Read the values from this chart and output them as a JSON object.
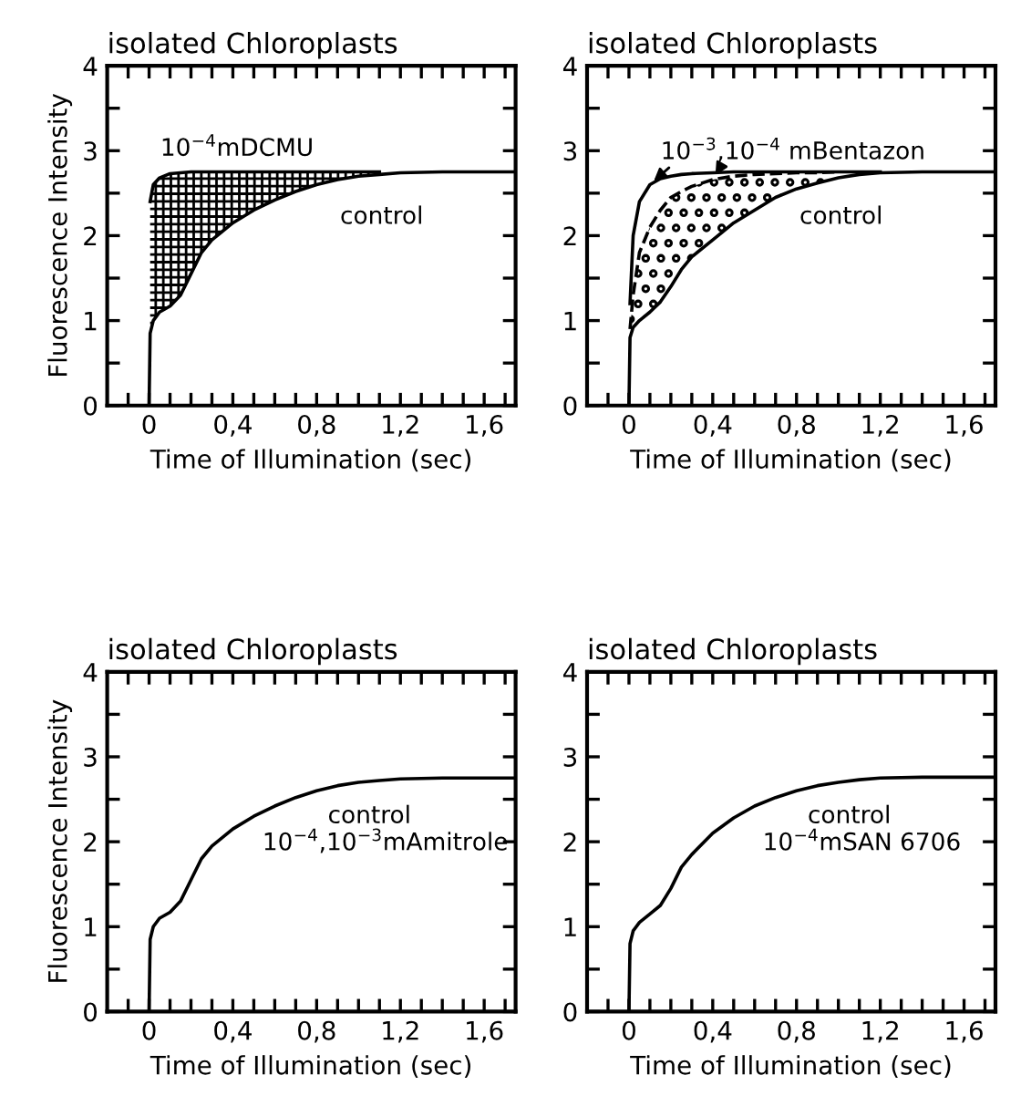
{
  "chart_data": [
    {
      "type": "line",
      "title": "isolated Chloroplasts",
      "xlabel": "Time of Illumination (sec)",
      "ylabel": "Fluorescence Intensity",
      "x": [
        0,
        0.005,
        0.02,
        0.05,
        0.1,
        0.15,
        0.2,
        0.25,
        0.3,
        0.4,
        0.5,
        0.6,
        0.7,
        0.8,
        0.9,
        1.0,
        1.1,
        1.2,
        1.4,
        1.75
      ],
      "series": [
        {
          "color": "#000000",
          "values": [
            0,
            0.85,
            1.0,
            1.1,
            1.17,
            1.3,
            1.55,
            1.8,
            1.95,
            2.15,
            2.3,
            2.42,
            2.52,
            2.6,
            2.66,
            2.7,
            2.72,
            2.74,
            2.75,
            2.75
          ]
        },
        {
          "color": "#000000",
          "values": [
            null,
            2.4,
            2.6,
            2.68,
            2.73,
            2.74,
            2.75,
            2.75,
            2.75,
            2.75,
            2.75,
            2.75,
            2.75,
            2.75,
            2.75,
            2.75,
            2.75,
            null,
            null,
            null
          ],
          "lower": [
            null,
            0.85,
            1.0,
            1.1,
            1.17,
            1.3,
            1.55,
            1.8,
            1.95,
            2.15,
            2.3,
            2.42,
            2.52,
            2.6,
            2.66,
            2.7,
            2.72,
            null,
            null,
            null
          ],
          "upper": [
            null,
            2.4,
            2.6,
            2.68,
            2.73,
            2.74,
            2.75,
            2.75,
            2.75,
            2.75,
            2.75,
            2.75,
            2.75,
            2.75,
            2.75,
            2.75,
            2.75,
            null,
            null,
            null
          ]
        }
      ],
      "annotations": [
        "10$^{−4}$mDCMU",
        "control"
      ],
      "xlim": [
        -0.2,
        1.75
      ],
      "ylim": [
        0,
        4
      ],
      "xticks": [
        {
          "value": -0.1,
          "label": null
        },
        0,
        {
          "value": 0.1,
          "label": null
        },
        {
          "value": 0.2,
          "label": null
        },
        {
          "value": 0.3,
          "label": null
        },
        {
          "value": 0.4,
          "label": "0,4"
        },
        {
          "value": 0.5,
          "label": null
        },
        {
          "value": 0.6,
          "label": null
        },
        {
          "value": 0.7,
          "label": null
        },
        {
          "value": 0.8,
          "label": "0,8"
        },
        {
          "value": 0.9,
          "label": null
        },
        {
          "value": 1.0,
          "label": null
        },
        {
          "value": 1.1,
          "label": null
        },
        {
          "value": 1.2,
          "label": "1,2"
        },
        {
          "value": 1.3,
          "label": null
        },
        {
          "value": 1.4,
          "label": null
        },
        {
          "value": 1.5,
          "label": null
        },
        {
          "value": 1.6,
          "label": "1,6"
        },
        {
          "value": 1.7,
          "label": null
        }
      ],
      "yticks": [
        0,
        {
          "value": 0.5,
          "label": null
        },
        1,
        {
          "value": 1.5,
          "label": null
        },
        2,
        {
          "value": 2.5,
          "label": null
        },
        3,
        {
          "value": 3.5,
          "label": null
        },
        4
      ],
      "grid": false,
      "legend": false
    },
    {
      "type": "line",
      "title": "isolated Chloroplasts",
      "xlabel": "Time of Illumination (sec)",
      "x": [
        0,
        0.005,
        0.02,
        0.05,
        0.1,
        0.15,
        0.2,
        0.25,
        0.3,
        0.4,
        0.5,
        0.6,
        0.7,
        0.8,
        0.9,
        1.0,
        1.1,
        1.2,
        1.4,
        1.75
      ],
      "series": [
        {
          "color": "#000000",
          "values": [
            0,
            0.8,
            0.92,
            1.0,
            1.1,
            1.22,
            1.4,
            1.6,
            1.75,
            1.95,
            2.15,
            2.3,
            2.45,
            2.55,
            2.62,
            2.68,
            2.72,
            2.74,
            2.75,
            2.75
          ]
        },
        {
          "color": "#000000",
          "values": [
            null,
            1.2,
            2.0,
            2.4,
            2.6,
            2.67,
            2.7,
            2.72,
            2.73,
            2.74,
            2.75,
            2.75,
            2.75,
            2.75,
            2.75,
            2.75,
            2.75,
            2.75,
            null,
            null
          ]
        },
        {
          "color": "#000000",
          "line_style": "dashed",
          "values": [
            null,
            0.9,
            1.3,
            1.8,
            2.1,
            2.3,
            2.45,
            2.52,
            2.58,
            2.66,
            2.7,
            2.72,
            2.73,
            2.74,
            2.74,
            2.75,
            null,
            null,
            null,
            null
          ],
          "lower": [
            null,
            0.8,
            0.92,
            1.0,
            1.1,
            1.22,
            1.4,
            1.6,
            1.75,
            1.95,
            2.15,
            2.3,
            2.45,
            2.55,
            2.62,
            2.68,
            null,
            null,
            null,
            null
          ],
          "upper": [
            null,
            0.9,
            1.3,
            1.8,
            2.1,
            2.3,
            2.45,
            2.52,
            2.58,
            2.66,
            2.7,
            2.72,
            2.73,
            2.74,
            2.74,
            2.75,
            null,
            null,
            null,
            null
          ]
        }
      ],
      "annotations": [
        "10$^{−3}$,10$^{−4}$ mBentazon",
        "control"
      ],
      "xlim": [
        -0.2,
        1.75
      ],
      "ylim": [
        0,
        4
      ],
      "xticks": [
        {
          "value": -0.1,
          "label": null
        },
        0,
        {
          "value": 0.1,
          "label": null
        },
        {
          "value": 0.2,
          "label": null
        },
        {
          "value": 0.3,
          "label": null
        },
        {
          "value": 0.4,
          "label": "0,4"
        },
        {
          "value": 0.5,
          "label": null
        },
        {
          "value": 0.6,
          "label": null
        },
        {
          "value": 0.7,
          "label": null
        },
        {
          "value": 0.8,
          "label": "0,8"
        },
        {
          "value": 0.9,
          "label": null
        },
        {
          "value": 1.0,
          "label": null
        },
        {
          "value": 1.1,
          "label": null
        },
        {
          "value": 1.2,
          "label": "1,2"
        },
        {
          "value": 1.3,
          "label": null
        },
        {
          "value": 1.4,
          "label": null
        },
        {
          "value": 1.5,
          "label": null
        },
        {
          "value": 1.6,
          "label": "1,6"
        },
        {
          "value": 1.7,
          "label": null
        }
      ],
      "yticks": [
        0,
        {
          "value": 0.5,
          "label": null
        },
        1,
        {
          "value": 1.5,
          "label": null
        },
        2,
        {
          "value": 2.5,
          "label": null
        },
        3,
        {
          "value": 3.5,
          "label": null
        },
        4
      ],
      "grid": false,
      "legend": false
    },
    {
      "type": "line",
      "title": "isolated Chloroplasts",
      "xlabel": "Time of Illumination (sec)",
      "ylabel": "Fluorescence Intensity",
      "x": [
        0,
        0.005,
        0.02,
        0.05,
        0.1,
        0.15,
        0.2,
        0.25,
        0.3,
        0.4,
        0.5,
        0.6,
        0.7,
        0.8,
        0.9,
        1.0,
        1.1,
        1.2,
        1.4,
        1.75
      ],
      "series": [
        {
          "color": "#000000",
          "values": [
            0,
            0.85,
            1.0,
            1.1,
            1.17,
            1.3,
            1.55,
            1.8,
            1.95,
            2.15,
            2.3,
            2.42,
            2.52,
            2.6,
            2.66,
            2.7,
            2.72,
            2.74,
            2.75,
            2.75
          ]
        }
      ],
      "annotations": [
        "control",
        "10$^{−4}$,10$^{−3}$mAmitrole"
      ],
      "xlim": [
        -0.2,
        1.75
      ],
      "ylim": [
        0,
        4
      ],
      "xticks": [
        {
          "value": -0.1,
          "label": null
        },
        0,
        {
          "value": 0.1,
          "label": null
        },
        {
          "value": 0.2,
          "label": null
        },
        {
          "value": 0.3,
          "label": null
        },
        {
          "value": 0.4,
          "label": "0,4"
        },
        {
          "value": 0.5,
          "label": null
        },
        {
          "value": 0.6,
          "label": null
        },
        {
          "value": 0.7,
          "label": null
        },
        {
          "value": 0.8,
          "label": "0,8"
        },
        {
          "value": 0.9,
          "label": null
        },
        {
          "value": 1.0,
          "label": null
        },
        {
          "value": 1.1,
          "label": null
        },
        {
          "value": 1.2,
          "label": "1,2"
        },
        {
          "value": 1.3,
          "label": null
        },
        {
          "value": 1.4,
          "label": null
        },
        {
          "value": 1.5,
          "label": null
        },
        {
          "value": 1.6,
          "label": "1,6"
        },
        {
          "value": 1.7,
          "label": null
        }
      ],
      "yticks": [
        0,
        {
          "value": 0.5,
          "label": null
        },
        1,
        {
          "value": 1.5,
          "label": null
        },
        2,
        {
          "value": 2.5,
          "label": null
        },
        3,
        {
          "value": 3.5,
          "label": null
        },
        4
      ],
      "grid": false,
      "legend": false
    },
    {
      "type": "line",
      "title": "isolated Chloroplasts",
      "xlabel": "Time of Illumination (sec)",
      "x": [
        0,
        0.005,
        0.02,
        0.05,
        0.1,
        0.15,
        0.2,
        0.25,
        0.3,
        0.4,
        0.5,
        0.6,
        0.7,
        0.8,
        0.9,
        1.0,
        1.1,
        1.2,
        1.4,
        1.75
      ],
      "series": [
        {
          "color": "#000000",
          "values": [
            0,
            0.8,
            0.95,
            1.05,
            1.15,
            1.25,
            1.45,
            1.7,
            1.85,
            2.1,
            2.28,
            2.42,
            2.52,
            2.6,
            2.66,
            2.7,
            2.73,
            2.75,
            2.76,
            2.76
          ]
        }
      ],
      "annotations": [
        "control",
        "10$^{−4}$mSAN 6706"
      ],
      "xlim": [
        -0.2,
        1.75
      ],
      "ylim": [
        0,
        4
      ],
      "xticks": [
        {
          "value": -0.1,
          "label": null
        },
        0,
        {
          "value": 0.1,
          "label": null
        },
        {
          "value": 0.2,
          "label": null
        },
        {
          "value": 0.3,
          "label": null
        },
        {
          "value": 0.4,
          "label": "0,4"
        },
        {
          "value": 0.5,
          "label": null
        },
        {
          "value": 0.6,
          "label": null
        },
        {
          "value": 0.7,
          "label": null
        },
        {
          "value": 0.8,
          "label": "0,8"
        },
        {
          "value": 0.9,
          "label": null
        },
        {
          "value": 1.0,
          "label": null
        },
        {
          "value": 1.1,
          "label": null
        },
        {
          "value": 1.2,
          "label": "1,2"
        },
        {
          "value": 1.3,
          "label": null
        },
        {
          "value": 1.4,
          "label": null
        },
        {
          "value": 1.5,
          "label": null
        },
        {
          "value": 1.6,
          "label": "1,6"
        },
        {
          "value": 1.7,
          "label": null
        }
      ],
      "yticks": [
        0,
        {
          "value": 0.5,
          "label": null
        },
        1,
        {
          "value": 1.5,
          "label": null
        },
        2,
        {
          "value": 2.5,
          "label": null
        },
        3,
        {
          "value": 3.5,
          "label": null
        },
        4
      ],
      "grid": false,
      "legend": false
    }
  ]
}
